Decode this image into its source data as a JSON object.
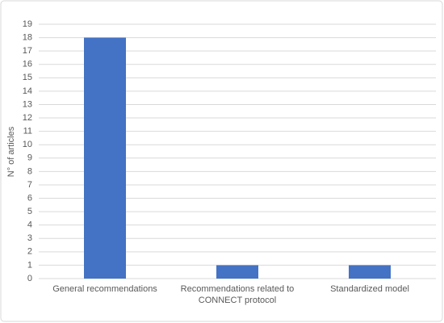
{
  "chart_data": {
    "type": "bar",
    "y_label": "N° of articles",
    "categories": [
      "General recommendations",
      "Recommendations related to CONNECT protocol",
      "Standardized model"
    ],
    "values": [
      18,
      1,
      1
    ],
    "color": "#4472c4",
    "ylim": [
      0,
      19
    ],
    "yticks": [
      0,
      1,
      2,
      3,
      4,
      5,
      6,
      7,
      8,
      9,
      10,
      11,
      12,
      13,
      14,
      15,
      16,
      17,
      18,
      19
    ],
    "grid": true
  }
}
